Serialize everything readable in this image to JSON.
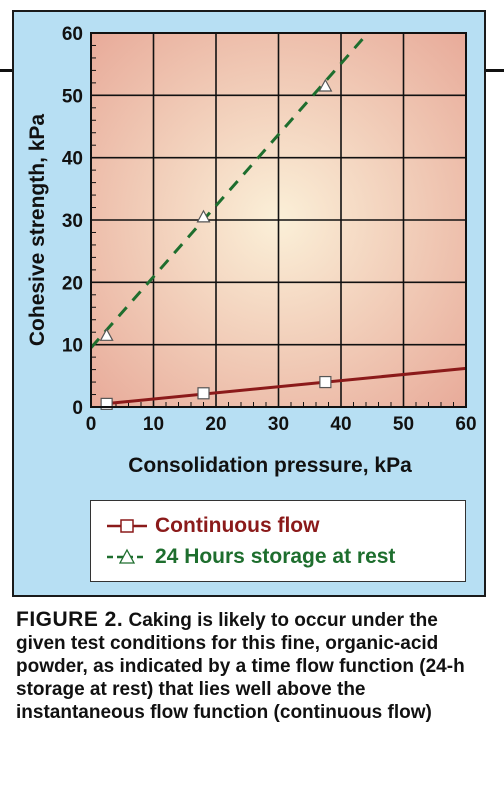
{
  "chart_data": {
    "type": "line",
    "xlabel": "Consolidation pressure, kPa",
    "ylabel": "Cohesive strength, kPa",
    "xlim": [
      0,
      60
    ],
    "ylim": [
      0,
      60
    ],
    "x_ticks": [
      "0",
      "10",
      "20",
      "30",
      "40",
      "50",
      "60"
    ],
    "y_ticks": [
      "0",
      "10",
      "20",
      "30",
      "40",
      "50",
      "60"
    ],
    "grid": true,
    "legend_position": "bottom",
    "series": [
      {
        "name": "Continuous flow",
        "color": "#8b1a1a",
        "marker": "square",
        "line_style": "solid",
        "points": [
          [
            2.5,
            0.5
          ],
          [
            18,
            2.2
          ],
          [
            37.5,
            4.0
          ]
        ],
        "fit_line": [
          [
            2,
            0.5
          ],
          [
            60,
            6.2
          ]
        ]
      },
      {
        "name": "24 Hours storage at rest",
        "color": "#1e6e2e",
        "marker": "triangle",
        "line_style": "dashed",
        "points": [
          [
            2.5,
            11.5
          ],
          [
            18,
            30.5
          ],
          [
            37.5,
            51.5
          ]
        ],
        "fit_line": [
          [
            0,
            9.5
          ],
          [
            44.3,
            60
          ]
        ]
      }
    ]
  },
  "caption": {
    "label": "FIGURE 2.",
    "text": " Caking is likely to occur under the given test conditions for this fine, organic-acid powder, as indicated by a time flow function (24-h storage at rest) that lies well above the instantaneous flow function (continuous flow)"
  }
}
